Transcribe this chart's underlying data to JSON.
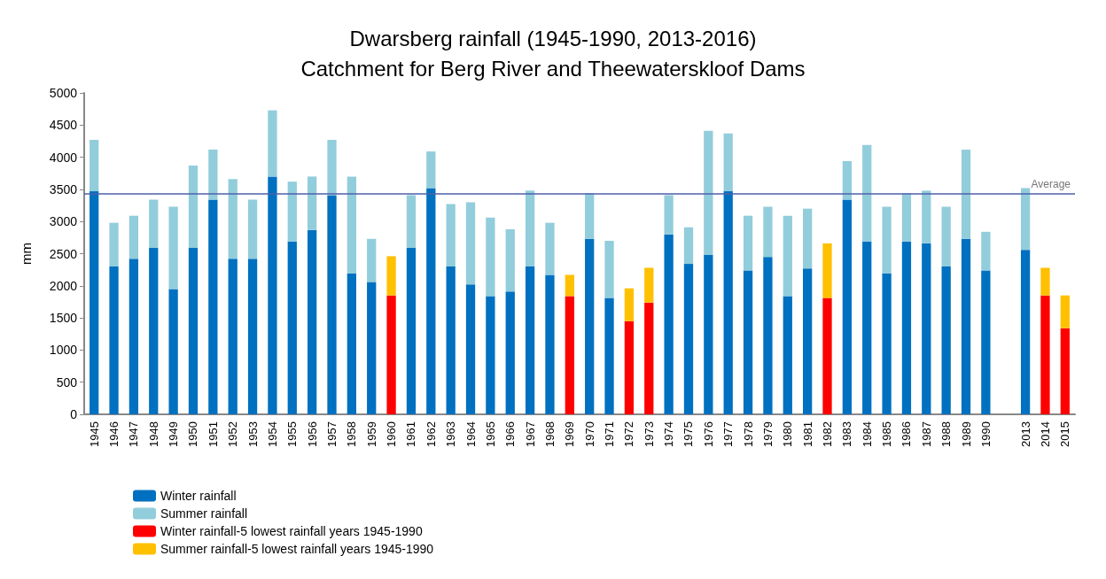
{
  "chart_data": {
    "type": "bar",
    "title": "Dwarsberg rainfall (1945-1990, 2013-2016)",
    "subtitle": "Catchment for Berg River and Theewaterskloof Dams",
    "ylabel": "mm",
    "categories": [
      "1945",
      "1946",
      "1947",
      "1948",
      "1949",
      "1950",
      "1951",
      "1952",
      "1953",
      "1954",
      "1955",
      "1956",
      "1957",
      "1958",
      "1959",
      "1960",
      "1961",
      "1962",
      "1963",
      "1964",
      "1965",
      "1966",
      "1967",
      "1968",
      "1969",
      "1970",
      "1971",
      "1972",
      "1973",
      "1974",
      "1975",
      "1976",
      "1977",
      "1978",
      "1979",
      "1980",
      "1981",
      "1982",
      "1983",
      "1984",
      "1985",
      "1986",
      "1987",
      "1988",
      "1989",
      "1990",
      null,
      "2013",
      "2014",
      "2015"
    ],
    "stacked": true,
    "series": [
      {
        "name": "Winter rainfall",
        "color": "#0070c0",
        "values": [
          3470,
          2300,
          2420,
          2590,
          1950,
          2590,
          3340,
          2420,
          2420,
          3700,
          2690,
          2870,
          3410,
          2190,
          2060,
          null,
          2590,
          3520,
          2300,
          2020,
          1840,
          1910,
          2300,
          2170,
          null,
          2730,
          1810,
          null,
          null,
          2800,
          2340,
          2480,
          3470,
          2240,
          2450,
          1840,
          2270,
          null,
          3340,
          2690,
          2190,
          2690,
          2660,
          2300,
          2730,
          2240,
          null,
          2560,
          null,
          null
        ]
      },
      {
        "name": "Summer rainfall",
        "color": "#92cddc",
        "values": [
          800,
          680,
          670,
          750,
          1280,
          1280,
          780,
          1240,
          920,
          1030,
          930,
          830,
          860,
          1510,
          670,
          null,
          820,
          570,
          970,
          1280,
          1220,
          970,
          1180,
          810,
          null,
          710,
          890,
          null,
          null,
          610,
          570,
          1930,
          900,
          850,
          780,
          1250,
          930,
          null,
          600,
          1500,
          1040,
          750,
          820,
          930,
          1390,
          600,
          null,
          960,
          null,
          null
        ]
      },
      {
        "name": "Winter rainfall-5 lowest rainfall years 1945-1990",
        "color": "#ff0000",
        "values": [
          null,
          null,
          null,
          null,
          null,
          null,
          null,
          null,
          null,
          null,
          null,
          null,
          null,
          null,
          null,
          1850,
          null,
          null,
          null,
          null,
          null,
          null,
          null,
          null,
          1840,
          null,
          null,
          1450,
          1740,
          null,
          null,
          null,
          null,
          null,
          null,
          null,
          null,
          1810,
          null,
          null,
          null,
          null,
          null,
          null,
          null,
          null,
          null,
          null,
          1850,
          1340
        ]
      },
      {
        "name": "Summer rainfall-5 lowest rainfall years 1945-1990",
        "color": "#ffc000",
        "values": [
          null,
          null,
          null,
          null,
          null,
          null,
          null,
          null,
          null,
          null,
          null,
          null,
          null,
          null,
          null,
          610,
          null,
          null,
          null,
          null,
          null,
          null,
          null,
          null,
          330,
          null,
          null,
          510,
          540,
          null,
          null,
          null,
          null,
          null,
          null,
          null,
          null,
          850,
          null,
          null,
          null,
          null,
          null,
          null,
          null,
          null,
          null,
          null,
          430,
          510
        ]
      }
    ],
    "ylim": [
      0,
      5000
    ],
    "yticks": [
      0,
      500,
      1000,
      1500,
      2000,
      2500,
      3000,
      3500,
      4000,
      4500,
      5000
    ],
    "ref_lines": [
      {
        "axis": "y",
        "value": 3430,
        "label": "Average",
        "color": "#4f5fa8"
      }
    ],
    "grid": false,
    "legend": "bottom left"
  }
}
